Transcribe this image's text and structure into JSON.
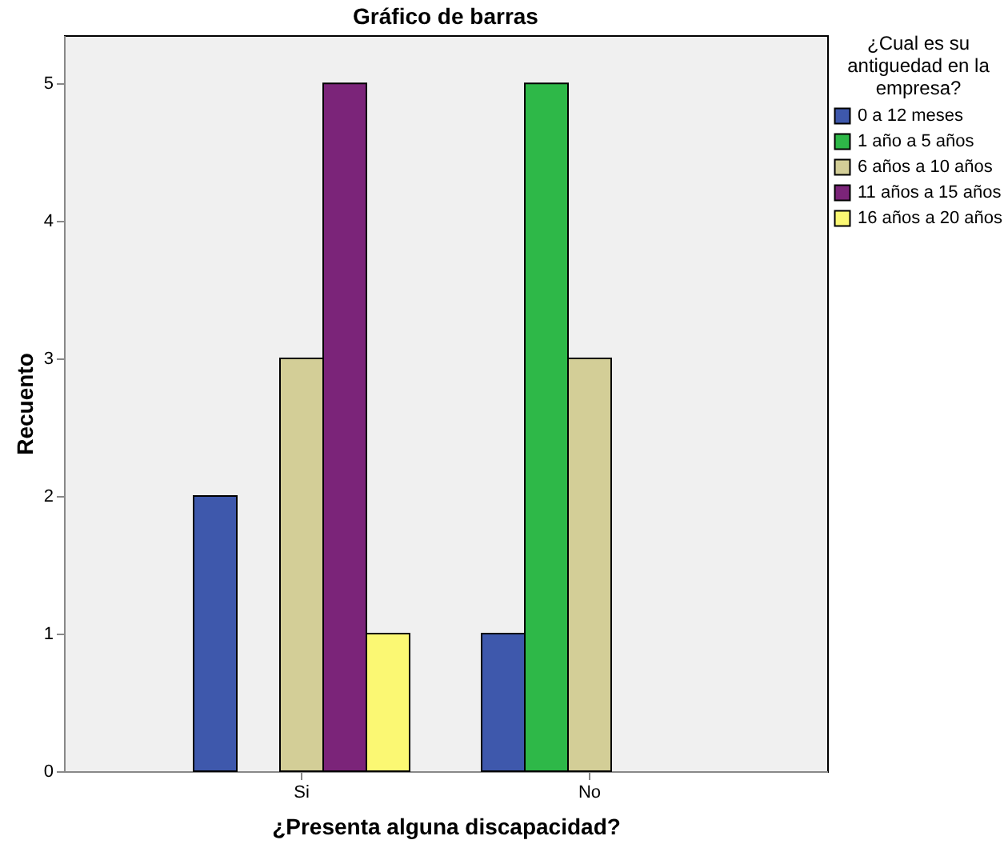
{
  "chart_data": {
    "type": "bar",
    "title": "Gráfico de barras",
    "xlabel": "¿Presenta alguna discapacidad?",
    "ylabel": "Recuento",
    "legend_title": "¿Cual es su antiguedad en la empresa?",
    "categories": [
      "Si",
      "No"
    ],
    "series": [
      {
        "name": "0 a 12 meses",
        "color": "#3e58ac",
        "values": [
          2,
          1
        ]
      },
      {
        "name": "1 año a 5 años",
        "color": "#2eb848",
        "values": [
          null,
          5
        ]
      },
      {
        "name": "6 años a 10 años",
        "color": "#d3ce97",
        "values": [
          3,
          3
        ]
      },
      {
        "name": "11 años a 15 años",
        "color": "#7b2479",
        "values": [
          5,
          null
        ]
      },
      {
        "name": "16 años a 20 años",
        "color": "#fbf873",
        "values": [
          1,
          null
        ]
      }
    ],
    "ylim": [
      0,
      5.35
    ],
    "yticks": [
      0,
      1,
      2,
      3,
      4,
      5
    ],
    "grid": false,
    "legend": "top right"
  }
}
